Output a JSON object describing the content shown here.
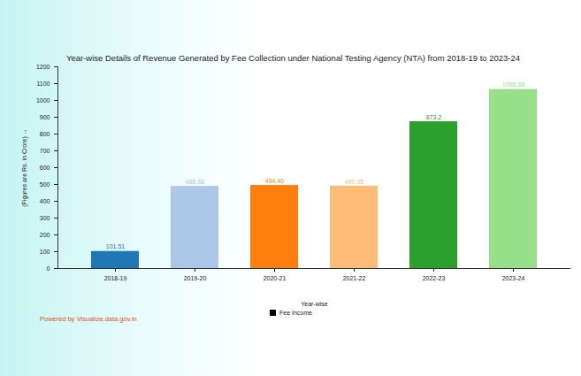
{
  "chart_data": {
    "type": "bar",
    "title": "Year-wise Details of Revenue Generated by Fee Collection under National Testing Agency (NTA) from 2018-19 to 2023-24",
    "x_label": "Year-wise",
    "y_label": "(Figures are Rs. in Crore)",
    "caption": "Powered by Visualize.data.gov.in",
    "categories": [
      "2018-19",
      "2019-20",
      "2020-21",
      "2021-22",
      "2022-23",
      "2023-24"
    ],
    "series": [
      {
        "name": "Fee Income",
        "color": "#000000",
        "colors": [
          "#1f77b4",
          "#aec7e8",
          "#ff7f0e",
          "#ffbb78",
          "#2ca02c",
          "#98df8a"
        ],
        "values": [
          101.51,
          488.88,
          494.4,
          490.35,
          873.2,
          1065.38
        ],
        "value_labels": [
          "101.51",
          "488.88",
          "494.40",
          "490.35",
          "873.2",
          "1065.38"
        ]
      }
    ],
    "ylim": [
      0,
      1200
    ],
    "yticks": [
      0,
      100,
      200,
      300,
      400,
      500,
      600,
      700,
      800,
      900,
      1000,
      1100,
      1200
    ],
    "grid": false,
    "legend": "bottom",
    "data_labels": true
  }
}
